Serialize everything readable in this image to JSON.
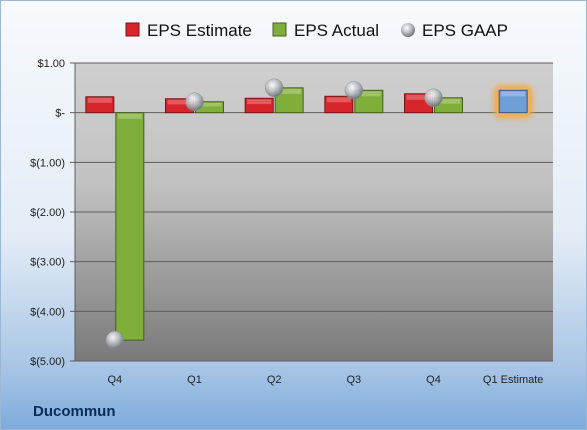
{
  "company": "Ducommun",
  "chart_data": {
    "type": "bar",
    "categories": [
      "Q4",
      "Q1",
      "Q2",
      "Q3",
      "Q4",
      "Q1 Estimate"
    ],
    "series": [
      {
        "name": "EPS Estimate",
        "color": "#d7262b",
        "values": [
          0.32,
          0.28,
          0.29,
          0.33,
          0.38,
          null
        ]
      },
      {
        "name": "EPS Actual",
        "color": "#7fae3a",
        "values": [
          -4.58,
          0.22,
          0.5,
          0.45,
          0.3,
          null
        ]
      },
      {
        "name": "EPS GAAP",
        "color": "#b4b8bd",
        "marker": "sphere",
        "values": [
          -4.58,
          0.22,
          0.5,
          0.45,
          0.3,
          null
        ]
      },
      {
        "name": "Q1 Estimate",
        "color": "#6f9fd6",
        "values": [
          null,
          null,
          null,
          null,
          null,
          0.45
        ]
      }
    ],
    "legend": [
      "EPS Estimate",
      "EPS Actual",
      "EPS GAAP"
    ],
    "legend_position": "top",
    "yticks": [
      "$1.00",
      "$-",
      "$(1.00)",
      "$(2.00)",
      "$(3.00)",
      "$(4.00)",
      "$(5.00)"
    ],
    "ylim": [
      -5,
      1
    ],
    "grid": true
  }
}
